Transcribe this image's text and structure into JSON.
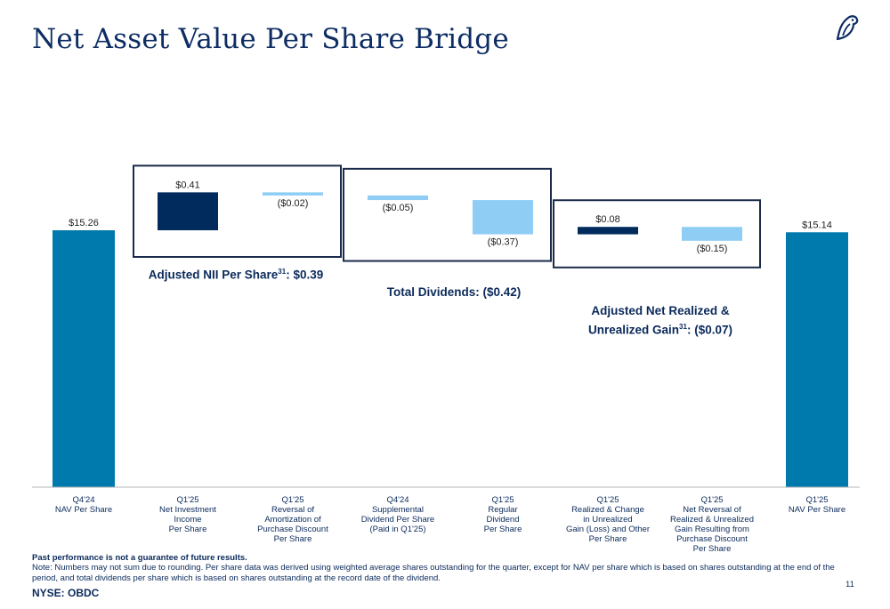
{
  "title": "Net Asset Value Per Share Bridge",
  "colors": {
    "navy": "#002b5c",
    "teal": "#0079ad",
    "light_blue": "#8fcdf5",
    "frame": "#1a2a4a"
  },
  "logo_icon": "bird-logo-icon",
  "groups": [
    {
      "label": "Adjusted NII Per Share",
      "superscript": "31",
      "suffix": ": $0.39"
    },
    {
      "label": "Total Dividends: ($0.42)"
    },
    {
      "line1": "Adjusted Net Realized &",
      "label": "Unrealized Gain",
      "superscript": "31",
      "suffix": ": ($0.07)"
    }
  ],
  "chart_data": {
    "type": "bar",
    "subtype": "waterfall",
    "categories": [
      [
        "Q4'24",
        "NAV Per Share"
      ],
      [
        "Q1'25",
        "Net Investment",
        "Income",
        "Per Share"
      ],
      [
        "Q1'25",
        "Reversal of",
        "Amortization of",
        "Purchase Discount",
        "Per Share"
      ],
      [
        "Q4'24",
        "Supplemental",
        "Dividend Per Share",
        "(Paid in Q1'25)"
      ],
      [
        "Q1'25",
        "Regular",
        "Dividend",
        "Per Share"
      ],
      [
        "Q1'25",
        "Realized & Change",
        "in Unrealized",
        "Gain (Loss) and Other",
        "Per Share"
      ],
      [
        "Q1'25",
        "Net Reversal of",
        "Realized & Unrealized",
        "Gain Resulting from",
        "Purchase Discount",
        "Per Share"
      ],
      [
        "Q1'25",
        "NAV Per Share"
      ]
    ],
    "values": [
      15.26,
      0.41,
      -0.02,
      -0.05,
      -0.37,
      0.08,
      -0.15,
      15.14
    ],
    "kinds": [
      "total",
      "delta",
      "delta",
      "delta",
      "delta",
      "delta",
      "delta",
      "total"
    ],
    "labels": [
      "$15.26",
      "$0.41",
      "($0.02)",
      "($0.05)",
      "($0.37)",
      "$0.08",
      "($0.15)",
      "$15.14"
    ],
    "legend": "none",
    "grid": false
  },
  "footer": {
    "disclaimer": "Past performance is not a guarantee of future results.",
    "note": "Note: Numbers may not sum due to rounding. Per share data was derived using weighted average shares outstanding for the quarter, except for NAV per share which is based on shares outstanding at the end of the period, and total dividends per share which is based on shares outstanding at the record date of the dividend.",
    "ticker": "NYSE: OBDC",
    "page": "11"
  }
}
